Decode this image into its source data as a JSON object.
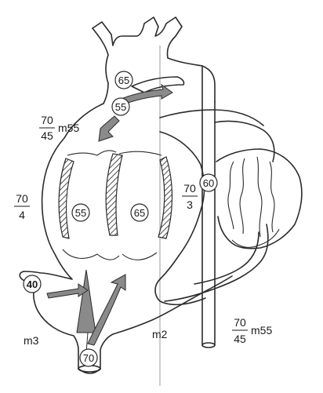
{
  "circle_labels": {
    "aorta": "65",
    "ductus": "55",
    "right_atrium": "55",
    "left_atrium": "65",
    "pulmonary_vein": "60",
    "ivc": "70",
    "umbilical_vein": "40"
  },
  "fraction_labels": {
    "svc": {
      "numerator": "70",
      "denominator": "45",
      "suffix": "m55"
    },
    "right_side": {
      "numerator": "70",
      "denominator": "4"
    },
    "left_side": {
      "numerator": "70",
      "denominator": "3"
    },
    "descending": {
      "numerator": "70",
      "denominator": "45",
      "suffix": "m55"
    }
  },
  "mean_labels": {
    "right": "m3",
    "left": "m2"
  }
}
